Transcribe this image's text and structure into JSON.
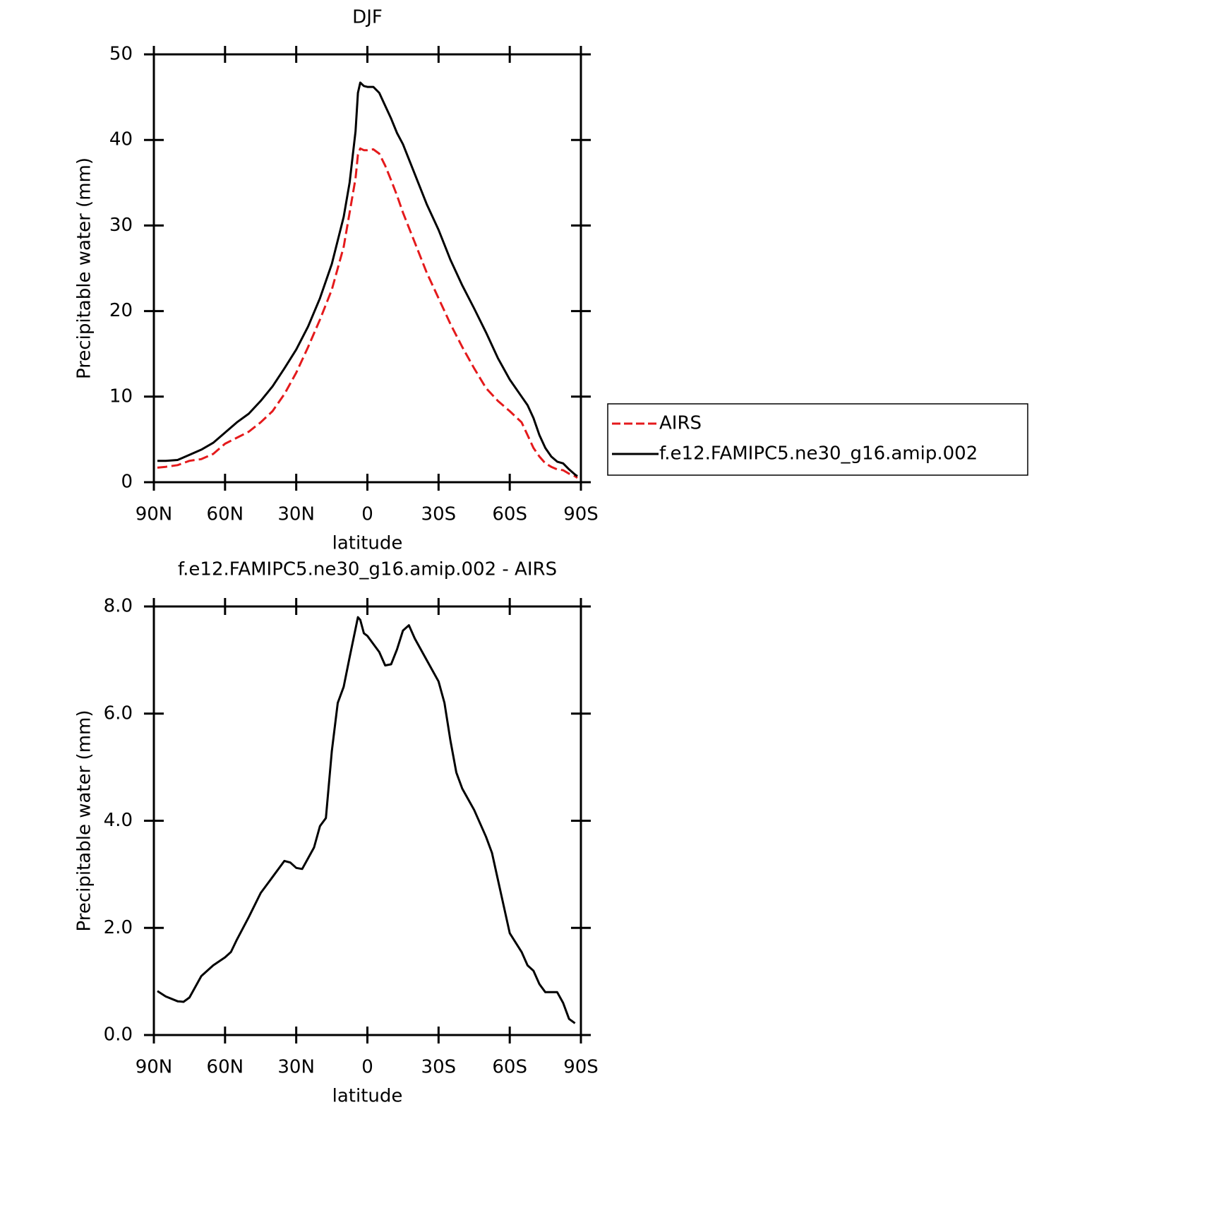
{
  "chart_data": [
    {
      "type": "line",
      "title": "DJF",
      "x_label": "latitude",
      "y_label": "Precipitable water (mm)",
      "xlim": [
        90,
        -90
      ],
      "ylim": [
        0,
        50
      ],
      "xticks": [
        {
          "value": 90,
          "label": "90N"
        },
        {
          "value": 60,
          "label": "60N"
        },
        {
          "value": 30,
          "label": "30N"
        },
        0,
        {
          "value": -30,
          "label": "30S"
        },
        {
          "value": -60,
          "label": "60S"
        },
        {
          "value": -90,
          "label": "90S"
        }
      ],
      "yticks": [
        0,
        10,
        20,
        30,
        40,
        50
      ],
      "legend": "right",
      "x": [
        88.5,
        85,
        80,
        75,
        70,
        65,
        60,
        55,
        50,
        45,
        40,
        35,
        30,
        25,
        20,
        15,
        10,
        7.5,
        5,
        4,
        3,
        1.5,
        0,
        -2.5,
        -5,
        -7.5,
        -10,
        -12.5,
        -15,
        -20,
        -25,
        -30,
        -35,
        -40,
        -45,
        -50,
        -55,
        -60,
        -65,
        -67.5,
        -70,
        -72.5,
        -75,
        -77.5,
        -80,
        -82.5,
        -85,
        -87.5,
        -88.5
      ],
      "series": [
        {
          "name": "AIRS",
          "color": "#e41a1c",
          "dashed": true,
          "values": [
            1.7,
            1.8,
            2.0,
            2.5,
            2.7,
            3.3,
            4.5,
            5.2,
            5.9,
            7.0,
            8.3,
            10.3,
            12.8,
            15.8,
            19.0,
            22.5,
            27.5,
            31.5,
            35.5,
            38.3,
            39.0,
            38.8,
            38.8,
            38.9,
            38.4,
            37,
            35.3,
            33.5,
            31.5,
            28,
            24.5,
            21.5,
            18.5,
            15.8,
            13.3,
            11,
            9.5,
            8.3,
            7,
            5.5,
            4,
            3.0,
            2.2,
            1.8,
            1.5,
            1.4,
            1.0,
            0.7,
            0.5
          ]
        },
        {
          "name": "f.e12.FAMIPC5.ne30_g16.amip.002",
          "color": "#000000",
          "dashed": false,
          "values": [
            2.5,
            2.5,
            2.6,
            3.2,
            3.8,
            4.6,
            5.8,
            7.0,
            8.0,
            9.5,
            11.2,
            13.3,
            15.5,
            18.2,
            21.5,
            25.5,
            31,
            35,
            41,
            45.5,
            46.7,
            46.3,
            46.2,
            46.2,
            45.5,
            44,
            42.5,
            40.8,
            39.5,
            36,
            32.5,
            29.5,
            26,
            23,
            20.3,
            17.5,
            14.5,
            12,
            10,
            9,
            7.5,
            5.5,
            4,
            3,
            2.4,
            2.2,
            1.5,
            0.9,
            0.7
          ]
        }
      ]
    },
    {
      "type": "line",
      "title": "f.e12.FAMIPC5.ne30_g16.amip.002 - AIRS",
      "x_label": "latitude",
      "y_label": "Precipitable water (mm)",
      "xlim": [
        90,
        -90
      ],
      "ylim": [
        0,
        8
      ],
      "xticks": [
        {
          "value": 90,
          "label": "90N"
        },
        {
          "value": 60,
          "label": "60N"
        },
        {
          "value": 30,
          "label": "30N"
        },
        0,
        {
          "value": -30,
          "label": "30S"
        },
        {
          "value": -60,
          "label": "60S"
        },
        {
          "value": -90,
          "label": "90S"
        }
      ],
      "yticks": [
        {
          "value": 0,
          "label": "0.0"
        },
        {
          "value": 2,
          "label": "2.0"
        },
        {
          "value": 4,
          "label": "4.0"
        },
        {
          "value": 6,
          "label": "6.0"
        },
        {
          "value": 8,
          "label": "8.0"
        }
      ],
      "x": [
        88.5,
        85,
        80,
        77.5,
        75,
        70,
        65,
        60,
        57.5,
        55,
        50,
        45,
        40,
        35,
        32.5,
        30,
        27.5,
        25,
        22.5,
        20,
        17.5,
        15,
        12.5,
        10,
        7.5,
        4,
        3,
        1.5,
        0,
        -2.5,
        -5,
        -7.5,
        -10,
        -12.5,
        -15,
        -17.5,
        -20,
        -25,
        -30,
        -32.5,
        -35,
        -37.5,
        -40,
        -45,
        -50,
        -52.5,
        -55,
        -60,
        -65,
        -67.5,
        -70,
        -72.5,
        -75,
        -77.5,
        -80,
        -82.5,
        -85,
        -87.5
      ],
      "color": "#000000",
      "values": [
        0.82,
        0.72,
        0.63,
        0.62,
        0.7,
        1.1,
        1.3,
        1.45,
        1.55,
        1.78,
        2.2,
        2.65,
        2.95,
        3.25,
        3.22,
        3.12,
        3.1,
        3.3,
        3.5,
        3.9,
        4.05,
        5.3,
        6.2,
        6.5,
        7.05,
        7.8,
        7.75,
        7.5,
        7.45,
        7.3,
        7.15,
        6.9,
        6.92,
        7.2,
        7.55,
        7.65,
        7.4,
        7.0,
        6.6,
        6.2,
        5.5,
        4.9,
        4.6,
        4.2,
        3.7,
        3.4,
        2.9,
        1.9,
        1.55,
        1.3,
        1.2,
        0.95,
        0.8,
        0.8,
        0.8,
        0.6,
        0.3,
        0.22
      ]
    }
  ]
}
